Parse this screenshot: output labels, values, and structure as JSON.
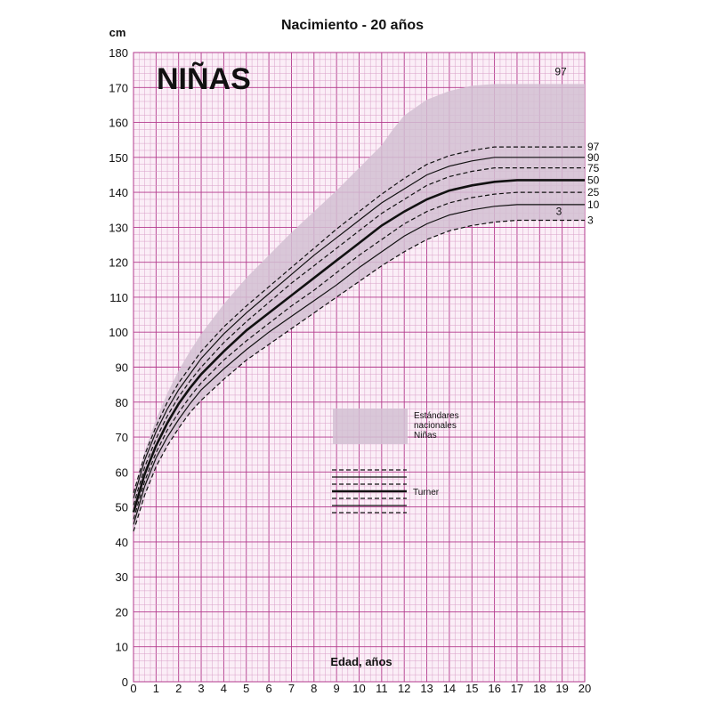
{
  "chart_data": {
    "type": "line",
    "title": "Nacimiento - 20 años",
    "panel_label": "NIÑAS",
    "xlabel": "Edad, años",
    "ylabel": "cm",
    "xlim": [
      0,
      20
    ],
    "ylim": [
      0,
      180
    ],
    "x_ticks": [
      "0",
      "1",
      "2",
      "3",
      "4",
      "5",
      "6",
      "7",
      "8",
      "9",
      "10",
      "11",
      "12",
      "13",
      "14",
      "15",
      "16",
      "17",
      "18",
      "19",
      "20"
    ],
    "y_ticks": [
      "0",
      "10",
      "20",
      "30",
      "40",
      "50",
      "60",
      "70",
      "80",
      "90",
      "100",
      "110",
      "120",
      "130",
      "140",
      "150",
      "160",
      "170",
      "180"
    ],
    "grid": true,
    "colors": {
      "grid_minor": "#d9a0c8",
      "grid_major": "#b33a8c",
      "band": "#d2c0d2",
      "line": "#111111"
    },
    "x": [
      0,
      0.5,
      1,
      1.5,
      2,
      2.5,
      3,
      4,
      5,
      6,
      7,
      8,
      9,
      10,
      11,
      12,
      13,
      14,
      15,
      16,
      17,
      18,
      19,
      20
    ],
    "series": [
      {
        "name": "97",
        "style": "dashed",
        "values": [
          54,
          65,
          73,
          80,
          85.5,
          90,
          94.5,
          101.5,
          107.5,
          113,
          118.5,
          124,
          129.5,
          134.5,
          139.5,
          144,
          148,
          150.5,
          152,
          153,
          153,
          153,
          153,
          153
        ]
      },
      {
        "name": "90",
        "style": "solid",
        "values": [
          52.5,
          63.5,
          71.5,
          78,
          83.5,
          88,
          92.5,
          99.5,
          105.5,
          111,
          116.5,
          122,
          127,
          132,
          137,
          141,
          145,
          147.5,
          149,
          150,
          150,
          150,
          150,
          150
        ]
      },
      {
        "name": "75",
        "style": "dashed",
        "values": [
          50.5,
          61.5,
          69.5,
          76,
          81.5,
          86,
          90,
          97,
          103,
          108.5,
          114,
          119,
          124,
          129,
          134,
          138,
          142,
          144.5,
          146,
          147,
          147,
          147,
          147,
          147
        ]
      },
      {
        "name": "50",
        "style": "bold",
        "values": [
          48.5,
          59.5,
          67.5,
          74,
          79.5,
          84,
          88,
          94.5,
          100.5,
          105.5,
          110.5,
          115.5,
          120.5,
          125.5,
          130.5,
          134.5,
          138,
          140.5,
          142,
          143,
          143.5,
          143.5,
          143.5,
          143.5
        ]
      },
      {
        "name": "25",
        "style": "dashed",
        "values": [
          46.5,
          57.5,
          65.5,
          72,
          77,
          81.5,
          85.5,
          92,
          97.5,
          102.5,
          107.5,
          112,
          117,
          122,
          126.5,
          131,
          134.5,
          137,
          138.5,
          139.5,
          140,
          140,
          140,
          140
        ]
      },
      {
        "name": "10",
        "style": "solid",
        "values": [
          45,
          56,
          64,
          70,
          75,
          79.5,
          83.5,
          89.5,
          95,
          100,
          104.5,
          109,
          113.5,
          118.5,
          123,
          127.5,
          131,
          133.5,
          135,
          136,
          136.5,
          136.5,
          136.5,
          136.5
        ]
      },
      {
        "name": "3",
        "style": "dashed",
        "values": [
          43,
          53.5,
          61.5,
          67.5,
          72.5,
          77,
          80.5,
          86.5,
          92,
          96.5,
          101,
          105.5,
          110,
          114.5,
          119,
          123,
          126.5,
          129,
          130.5,
          131.5,
          132,
          132,
          132,
          132
        ]
      }
    ],
    "band": {
      "name": "Estándares nacionales Niñas",
      "upper_label": "97",
      "lower_label": "3",
      "x": [
        0,
        0.5,
        1,
        1.5,
        2,
        2.5,
        3,
        4,
        5,
        6,
        7,
        8,
        9,
        10,
        11,
        11.5,
        12,
        13,
        14,
        15,
        16,
        17,
        18,
        19,
        20
      ],
      "upper": [
        54,
        66,
        75,
        82.5,
        89,
        94.5,
        99.5,
        108,
        115.5,
        122,
        128.5,
        134.5,
        140.5,
        147,
        153.5,
        158,
        162,
        166.5,
        169,
        170.5,
        171,
        171,
        171,
        171,
        171
      ],
      "lower": [
        43,
        53.5,
        61.5,
        67.5,
        72.5,
        77,
        80.5,
        86.5,
        92,
        96.5,
        101,
        105.5,
        110,
        114.5,
        119,
        121,
        123,
        126.5,
        129,
        130.5,
        131.5,
        132,
        132,
        132,
        132
      ]
    },
    "legend": {
      "band_lines": [
        "Estándares",
        "nacionales",
        "Niñas"
      ],
      "lines_label": "Turner",
      "placement": "center"
    }
  }
}
